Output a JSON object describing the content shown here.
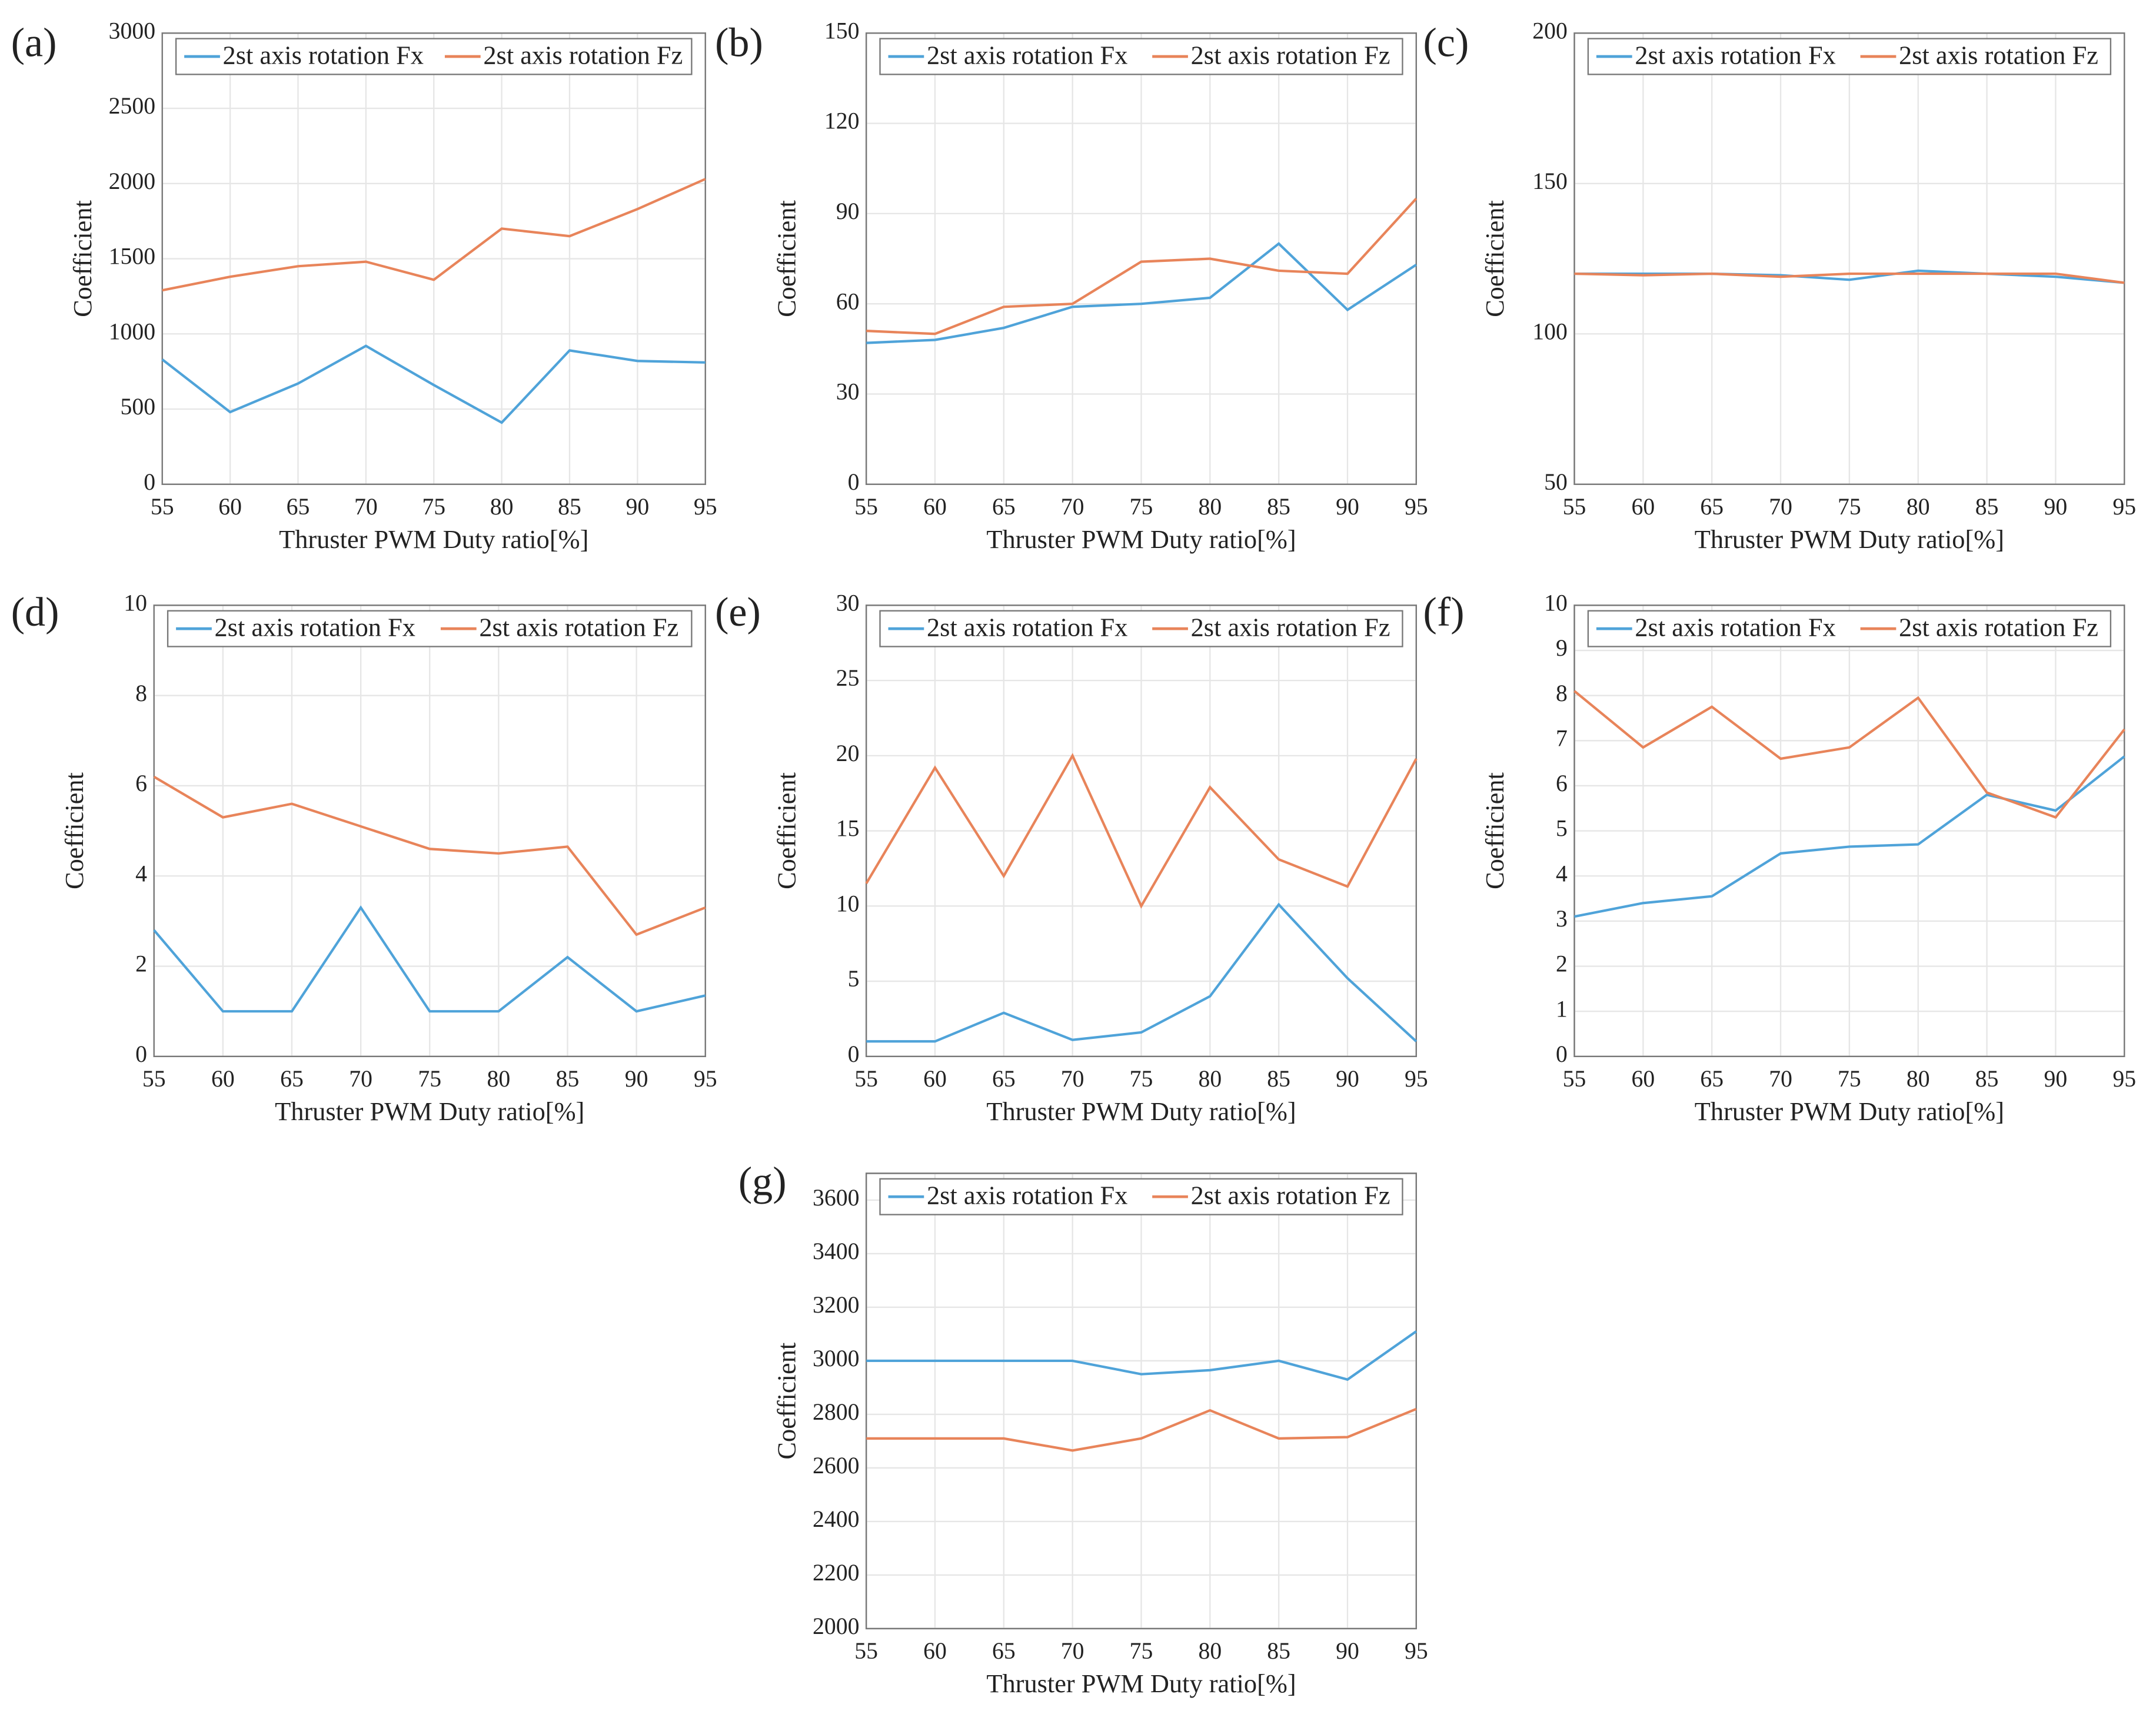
{
  "chart_data": [
    {
      "type": "line",
      "label": "(a)",
      "xlabel": "Thruster PWM Duty ratio[%]",
      "ylabel": "Coefficient",
      "x": [
        55,
        60,
        65,
        70,
        75,
        80,
        85,
        90,
        95
      ],
      "xlim": [
        55,
        95
      ],
      "xticks": [
        55,
        60,
        65,
        70,
        75,
        80,
        85,
        90,
        95
      ],
      "ylim": [
        0,
        3000
      ],
      "yticks": [
        0,
        500,
        1000,
        1500,
        2000,
        2500,
        3000
      ],
      "grid": true,
      "legend": "top",
      "series": [
        {
          "name": "2st axis rotation Fx",
          "color": "#4fa3d9",
          "values": [
            830,
            480,
            670,
            920,
            660,
            410,
            890,
            820,
            810
          ]
        },
        {
          "name": "2st axis rotation Fz",
          "color": "#e8845a",
          "values": [
            1290,
            1380,
            1450,
            1480,
            1360,
            1700,
            1650,
            1830,
            2030
          ]
        }
      ]
    },
    {
      "type": "line",
      "label": "(b)",
      "xlabel": "Thruster PWM Duty ratio[%]",
      "ylabel": "Coefficient",
      "x": [
        55,
        60,
        65,
        70,
        75,
        80,
        85,
        90,
        95
      ],
      "xlim": [
        55,
        95
      ],
      "xticks": [
        55,
        60,
        65,
        70,
        75,
        80,
        85,
        90,
        95
      ],
      "ylim": [
        0,
        150
      ],
      "yticks": [
        0,
        30,
        60,
        90,
        120,
        150
      ],
      "grid": true,
      "legend": "top",
      "series": [
        {
          "name": "2st axis rotation Fx",
          "color": "#4fa3d9",
          "values": [
            47,
            48,
            52,
            59,
            60,
            62,
            80,
            58,
            73
          ]
        },
        {
          "name": "2st axis rotation Fz",
          "color": "#e8845a",
          "values": [
            51,
            50,
            59,
            60,
            74,
            75,
            71,
            70,
            95
          ]
        }
      ]
    },
    {
      "type": "line",
      "label": "(c)",
      "xlabel": "Thruster PWM Duty ratio[%]",
      "ylabel": "Coefficient",
      "x": [
        55,
        60,
        65,
        70,
        75,
        80,
        85,
        90,
        95
      ],
      "xlim": [
        55,
        95
      ],
      "xticks": [
        55,
        60,
        65,
        70,
        75,
        80,
        85,
        90,
        95
      ],
      "ylim": [
        50,
        200
      ],
      "yticks": [
        50,
        100,
        150,
        200
      ],
      "grid": true,
      "legend": "top",
      "series": [
        {
          "name": "2st axis rotation Fx",
          "color": "#4fa3d9",
          "values": [
            120,
            120,
            120,
            119.5,
            118,
            121,
            120,
            119,
            117
          ]
        },
        {
          "name": "2st axis rotation Fz",
          "color": "#e8845a",
          "values": [
            120,
            119.5,
            120,
            119,
            120,
            120,
            120,
            120,
            117
          ]
        }
      ]
    },
    {
      "type": "line",
      "label": "(d)",
      "xlabel": "Thruster PWM Duty ratio[%]",
      "ylabel": "Coefficient",
      "x": [
        55,
        60,
        65,
        70,
        75,
        80,
        85,
        90,
        95
      ],
      "xlim": [
        55,
        95
      ],
      "xticks": [
        55,
        60,
        65,
        70,
        75,
        80,
        85,
        90,
        95
      ],
      "ylim": [
        0,
        10
      ],
      "yticks": [
        0,
        2,
        4,
        6,
        8,
        10
      ],
      "grid": true,
      "legend": "top",
      "series": [
        {
          "name": "2st axis rotation Fx",
          "color": "#4fa3d9",
          "values": [
            2.8,
            1,
            1,
            3.3,
            1,
            1,
            2.2,
            1,
            1.35
          ]
        },
        {
          "name": "2st axis rotation Fz",
          "color": "#e8845a",
          "values": [
            6.2,
            5.3,
            5.6,
            5.1,
            4.6,
            4.5,
            4.65,
            2.7,
            3.3
          ]
        }
      ]
    },
    {
      "type": "line",
      "label": "(e)",
      "xlabel": "Thruster PWM Duty ratio[%]",
      "ylabel": "Coefficient",
      "x": [
        55,
        60,
        65,
        70,
        75,
        80,
        85,
        90,
        95
      ],
      "xlim": [
        55,
        95
      ],
      "xticks": [
        55,
        60,
        65,
        70,
        75,
        80,
        85,
        90,
        95
      ],
      "ylim": [
        0,
        30
      ],
      "yticks": [
        0,
        5,
        10,
        15,
        20,
        25,
        30
      ],
      "grid": true,
      "legend": "top",
      "series": [
        {
          "name": "2st axis rotation Fx",
          "color": "#4fa3d9",
          "values": [
            1,
            1,
            2.9,
            1.1,
            1.6,
            4,
            10.1,
            5.2,
            1
          ]
        },
        {
          "name": "2st axis rotation Fz",
          "color": "#e8845a",
          "values": [
            11.5,
            19.2,
            12,
            20,
            10,
            17.9,
            13.1,
            11.3,
            19.8
          ]
        }
      ]
    },
    {
      "type": "line",
      "label": "(f)",
      "xlabel": "Thruster PWM Duty ratio[%]",
      "ylabel": "Coefficient",
      "x": [
        55,
        60,
        65,
        70,
        75,
        80,
        85,
        90,
        95
      ],
      "xlim": [
        55,
        95
      ],
      "xticks": [
        55,
        60,
        65,
        70,
        75,
        80,
        85,
        90,
        95
      ],
      "ylim": [
        0,
        10
      ],
      "yticks": [
        0,
        1,
        2,
        3,
        4,
        5,
        6,
        7,
        8,
        9,
        10
      ],
      "grid": true,
      "legend": "top",
      "series": [
        {
          "name": "2st axis rotation Fx",
          "color": "#4fa3d9",
          "values": [
            3.1,
            3.4,
            3.55,
            4.5,
            4.65,
            4.7,
            5.8,
            5.45,
            6.65
          ]
        },
        {
          "name": "2st axis rotation Fz",
          "color": "#e8845a",
          "values": [
            8.1,
            6.85,
            7.75,
            6.6,
            6.85,
            7.95,
            5.85,
            5.3,
            7.25
          ]
        }
      ]
    },
    {
      "type": "line",
      "label": "(g)",
      "xlabel": "Thruster PWM Duty ratio[%]",
      "ylabel": "Coefficient",
      "x": [
        55,
        60,
        65,
        70,
        75,
        80,
        85,
        90,
        95
      ],
      "xlim": [
        55,
        95
      ],
      "xticks": [
        55,
        60,
        65,
        70,
        75,
        80,
        85,
        90,
        95
      ],
      "ylim": [
        2000,
        3700
      ],
      "yticks": [
        2000,
        2200,
        2400,
        2600,
        2800,
        3000,
        3200,
        3400,
        3600
      ],
      "grid": true,
      "legend": "top",
      "series": [
        {
          "name": "2st axis rotation Fx",
          "color": "#4fa3d9",
          "values": [
            3000,
            3000,
            3000,
            3000,
            2950,
            2965,
            3000,
            2930,
            3110
          ]
        },
        {
          "name": "2st axis rotation Fz",
          "color": "#e8845a",
          "values": [
            2710,
            2710,
            2710,
            2665,
            2710,
            2815,
            2710,
            2715,
            2820
          ]
        }
      ]
    }
  ]
}
